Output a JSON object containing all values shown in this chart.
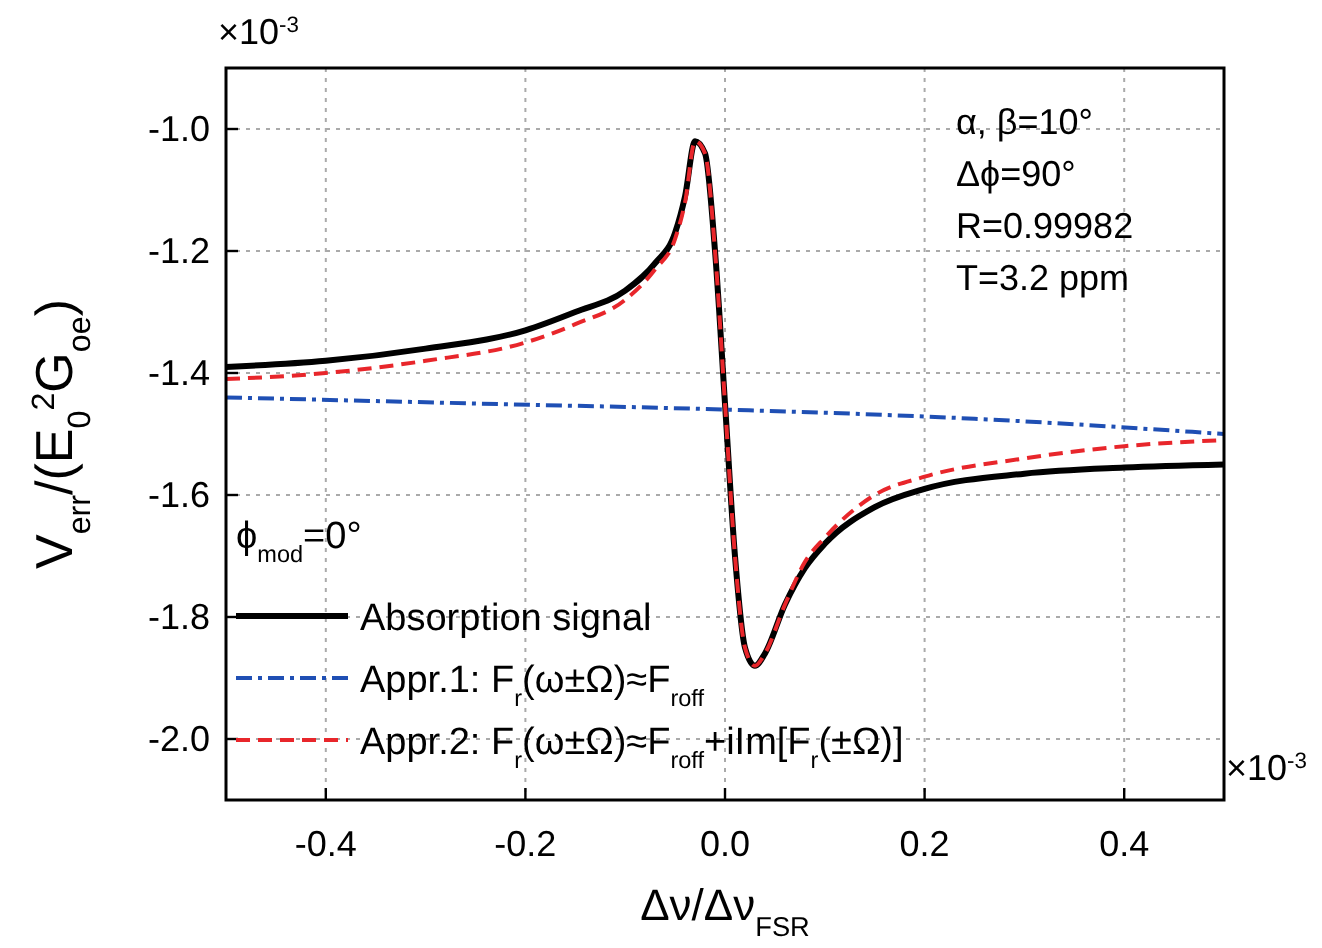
{
  "chart_data": {
    "type": "line",
    "xlabel": "Δν/Δν$_{FSR}$",
    "ylabel": "V$_{err}$/(E$_{0}$$^{2}$G$_{oe}$)",
    "legend_title": "ϕ$_{mod}$=0°",
    "xlim": [
      -0.5,
      0.5
    ],
    "xticks": [
      -0.4,
      -0.2,
      {
        "value": 0,
        "label": "0.0"
      },
      0.2,
      0.4
    ],
    "ylim": [
      -2.1,
      -0.9
    ],
    "yticks": [
      {
        "value": -2.0,
        "label": "-2.0"
      },
      -1.8,
      -1.6,
      -1.4,
      -1.2,
      {
        "value": -1.0,
        "label": "-1.0"
      }
    ],
    "grid": true,
    "legend": "bottom left",
    "annotations": [
      "α, β=10°",
      "Δϕ=90°",
      "R=0.99982",
      "T=3.2 ppm",
      "×10$^{-3}$",
      "×10$^{-3}$"
    ],
    "series": [
      {
        "name": "Absorption signal",
        "color": "#000000",
        "line_style": "solid",
        "x": [
          -0.5,
          -0.4,
          -0.3,
          -0.2,
          -0.15,
          -0.1,
          -0.07,
          -0.05,
          -0.04,
          -0.03,
          -0.02,
          -0.01,
          0,
          0.01,
          0.02,
          0.03,
          0.04,
          0.06,
          0.08,
          0.1,
          0.15,
          0.2,
          0.3,
          0.4,
          0.5
        ],
        "values": [
          -1.39,
          -1.38,
          -1.36,
          -1.33,
          -1.3,
          -1.265,
          -1.22,
          -1.17,
          -1.11,
          -1.02,
          -1.04,
          -1.2,
          -1.45,
          -1.7,
          -1.85,
          -1.88,
          -1.86,
          -1.78,
          -1.72,
          -1.68,
          -1.62,
          -1.59,
          -1.565,
          -1.555,
          -1.55
        ]
      },
      {
        "name": "Appr.1: F$_{r}$(ω±Ω)≈F$_{roff}$",
        "color": "#1f4fb4",
        "line_style": "dashdot",
        "x": [
          -0.5,
          -0.25,
          0,
          0.25,
          0.5
        ],
        "values": [
          -1.44,
          -1.45,
          -1.46,
          -1.475,
          -1.5
        ]
      },
      {
        "name": "Appr.2: F$_{r}$(ω±Ω)≈F$_{roff}$+iIm[F$_{r}$(±Ω)]",
        "color": "#e8262b",
        "line_style": "dashed",
        "x": [
          -0.5,
          -0.4,
          -0.3,
          -0.2,
          -0.15,
          -0.1,
          -0.07,
          -0.05,
          -0.04,
          -0.03,
          -0.02,
          -0.01,
          0,
          0.01,
          0.02,
          0.03,
          0.04,
          0.06,
          0.08,
          0.1,
          0.15,
          0.2,
          0.3,
          0.4,
          0.5
        ],
        "values": [
          -1.41,
          -1.4,
          -1.38,
          -1.35,
          -1.32,
          -1.28,
          -1.23,
          -1.18,
          -1.12,
          -1.02,
          -1.04,
          -1.2,
          -1.45,
          -1.7,
          -1.85,
          -1.88,
          -1.86,
          -1.78,
          -1.71,
          -1.67,
          -1.6,
          -1.57,
          -1.54,
          -1.52,
          -1.51
        ]
      }
    ]
  }
}
